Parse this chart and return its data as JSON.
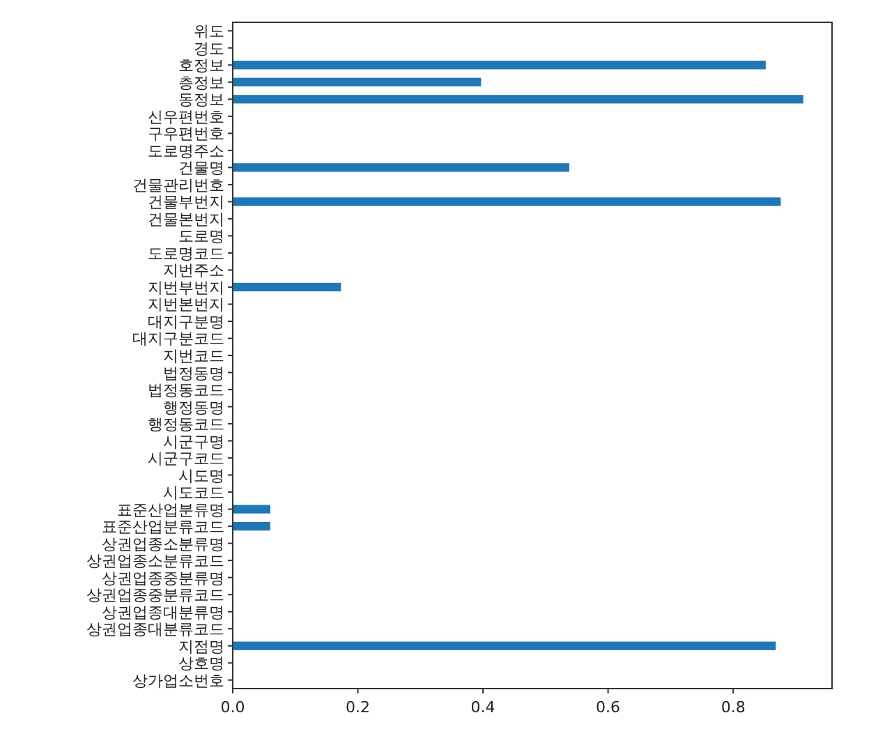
{
  "chart_data": {
    "type": "bar",
    "orientation": "horizontal",
    "color": "#1f77b4",
    "categories": [
      "위도",
      "경도",
      "호정보",
      "층정보",
      "동정보",
      "신우편번호",
      "구우편번호",
      "도로명주소",
      "건물명",
      "건물관리번호",
      "건물부번지",
      "건물본번지",
      "도로명",
      "도로명코드",
      "지번주소",
      "지번부번지",
      "지번본번지",
      "대지구분명",
      "대지구분코드",
      "지번코드",
      "법정동명",
      "법정동코드",
      "행정동명",
      "행정동코드",
      "시군구명",
      "시군구코드",
      "시도명",
      "시도코드",
      "표준산업분류명",
      "표준산업분류코드",
      "상권업종소분류명",
      "상권업종소분류코드",
      "상권업종중분류명",
      "상권업종중분류코드",
      "상권업종대분류명",
      "상권업종대분류코드",
      "지점명",
      "상호명",
      "상가업소번호"
    ],
    "values": [
      0,
      0,
      0.852,
      0.397,
      0.912,
      0,
      0,
      0,
      0.538,
      0,
      0.876,
      0,
      0,
      0,
      0,
      0.173,
      0,
      0,
      0,
      0,
      0,
      0,
      0,
      0,
      0,
      0,
      0,
      0,
      0.06,
      0.06,
      0,
      0,
      0,
      0,
      0,
      0,
      0.868,
      0,
      0
    ],
    "xlim": [
      0,
      0.958
    ],
    "xticks": [
      {
        "value": 0,
        "label": "0.0"
      },
      0.2,
      0.4,
      0.6,
      0.8
    ],
    "grid": false
  }
}
